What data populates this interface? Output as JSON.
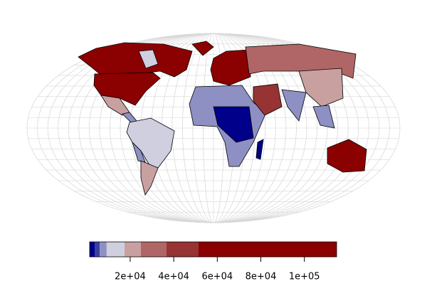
{
  "map": {
    "type": "choropleth",
    "colorbar": {
      "breaks": [
        1400,
        3700,
        6000,
        9200,
        17400,
        24900,
        36700,
        51400,
        114800
      ],
      "colors": [
        "#00008b",
        "#3a3f9e",
        "#8e90c4",
        "#cfcfe0",
        "#c9a0a0",
        "#b06666",
        "#973333",
        "#8b0000"
      ],
      "ticks": [
        {
          "value": 20000,
          "label": "2e+04"
        },
        {
          "value": 40000,
          "label": "4e+04"
        },
        {
          "value": 60000,
          "label": "6e+04"
        },
        {
          "value": 80000,
          "label": "8e+04"
        },
        {
          "value": 100000,
          "label": "1e+05"
        }
      ]
    }
  }
}
